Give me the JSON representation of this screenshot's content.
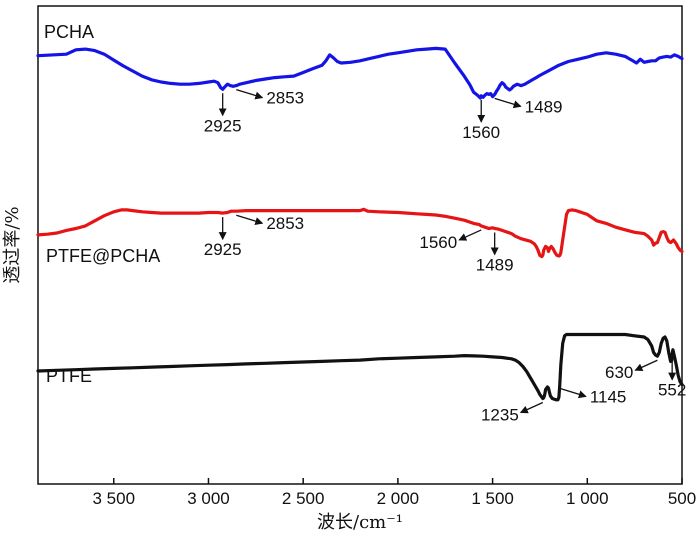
{
  "chart_data": {
    "type": "line",
    "title": "",
    "xlabel": "波长/cm⁻¹",
    "ylabel": "透过率/%",
    "xlim": [
      3900,
      500
    ],
    "x_reversed": true,
    "ylim": [
      0,
      100
    ],
    "x_ticks": [
      3500,
      3000,
      2500,
      2000,
      1500,
      1000,
      500
    ],
    "x_tick_labels": [
      "3 500",
      "3 000",
      "2 500",
      "2 000",
      "1 500",
      "1 000",
      "500"
    ],
    "y_ticks_shown": false,
    "grid": false,
    "legend": "none (series labelled inline)",
    "series": [
      {
        "name": "PCHA",
        "color": "#1414e6",
        "x": [
          3900,
          3750,
          3700,
          3650,
          3600,
          3550,
          3500,
          3450,
          3400,
          3350,
          3300,
          3250,
          3200,
          3150,
          3100,
          3050,
          3000,
          2970,
          2950,
          2935,
          2925,
          2915,
          2900,
          2885,
          2870,
          2853,
          2835,
          2800,
          2750,
          2700,
          2650,
          2600,
          2550,
          2500,
          2450,
          2400,
          2380,
          2360,
          2340,
          2320,
          2300,
          2250,
          2200,
          2150,
          2100,
          2050,
          2000,
          1950,
          1900,
          1850,
          1800,
          1750,
          1700,
          1650,
          1620,
          1600,
          1580,
          1565,
          1560,
          1550,
          1540,
          1530,
          1520,
          1510,
          1500,
          1489,
          1480,
          1470,
          1460,
          1450,
          1440,
          1430,
          1410,
          1400,
          1390,
          1370,
          1350,
          1330,
          1310,
          1290,
          1270,
          1250,
          1200,
          1150,
          1100,
          1050,
          1000,
          950,
          900,
          850,
          800,
          780,
          760,
          740,
          720,
          700,
          680,
          660,
          640,
          620,
          600,
          580,
          560,
          540,
          520,
          500
        ],
        "y": [
          92,
          93,
          96,
          96.5,
          95.5,
          93,
          89,
          85,
          81.5,
          78,
          75.5,
          74,
          73,
          72.5,
          72.5,
          73,
          74,
          74.5,
          73.5,
          70,
          69,
          70.5,
          72.5,
          71.5,
          71,
          71.5,
          72.5,
          73.5,
          75,
          76,
          77,
          77.5,
          78,
          80.5,
          83,
          85.5,
          88.5,
          92.5,
          90.5,
          88,
          87,
          87.5,
          88.5,
          90,
          91.5,
          93,
          94,
          95,
          96,
          96.5,
          97,
          96.5,
          87,
          78,
          72,
          67,
          65,
          63,
          64.5,
          63.5,
          65,
          66,
          65.5,
          66,
          64,
          65.5,
          67.5,
          69.5,
          72,
          73.5,
          72.5,
          70.5,
          68.5,
          69.5,
          71,
          72.5,
          71.5,
          72.5,
          74,
          75.5,
          77,
          78.5,
          82,
          85.5,
          88,
          89.5,
          91,
          93,
          94,
          93,
          91.5,
          90,
          88.5,
          87,
          89.5,
          87.5,
          88,
          88.5,
          88.5,
          90.5,
          91,
          91.5,
          91,
          92.5,
          91.5,
          90
        ]
      },
      {
        "name": "PTFE@PCHA",
        "color": "#e61414",
        "x": [
          3900,
          3850,
          3800,
          3750,
          3700,
          3650,
          3600,
          3550,
          3500,
          3460,
          3430,
          3400,
          3350,
          3300,
          3250,
          3200,
          3150,
          3100,
          3050,
          3000,
          2950,
          2925,
          2900,
          2880,
          2853,
          2800,
          2700,
          2600,
          2500,
          2400,
          2300,
          2200,
          2180,
          2160,
          2100,
          2000,
          1950,
          1900,
          1850,
          1800,
          1750,
          1700,
          1650,
          1600,
          1570,
          1560,
          1540,
          1520,
          1500,
          1489,
          1470,
          1450,
          1420,
          1400,
          1380,
          1350,
          1300,
          1280,
          1270,
          1260,
          1250,
          1240,
          1235,
          1230,
          1220,
          1210,
          1205,
          1200,
          1190,
          1180,
          1170,
          1160,
          1150,
          1145,
          1140,
          1130,
          1120,
          1110,
          1100,
          1080,
          1060,
          1040,
          1020,
          1000,
          980,
          950,
          900,
          850,
          800,
          750,
          700,
          680,
          660,
          650,
          640,
          630,
          620,
          610,
          600,
          590,
          580,
          570,
          560,
          552,
          545,
          530,
          520,
          510,
          500
        ],
        "y": [
          54,
          54.5,
          55.5,
          57.5,
          59,
          61,
          65,
          69,
          72,
          73.5,
          73.5,
          73,
          72,
          71.5,
          71,
          71,
          71,
          71,
          71,
          71.5,
          71.5,
          71,
          71.5,
          72.5,
          72.5,
          73,
          73,
          73,
          73,
          73,
          73,
          73,
          74,
          72.5,
          72,
          71.5,
          71,
          70.5,
          70,
          69.5,
          68.5,
          67,
          65.5,
          63,
          62,
          61,
          60,
          59,
          59.5,
          59,
          58.5,
          57.5,
          56,
          55,
          53,
          51,
          49,
          47,
          45,
          42,
          38,
          37,
          38,
          42,
          45,
          44,
          41,
          43,
          45,
          43,
          40,
          38,
          37.5,
          38,
          40,
          50,
          60,
          70,
          73,
          73.5,
          73,
          72,
          71,
          70,
          68,
          65,
          63,
          60,
          58,
          56,
          55,
          53,
          50,
          46,
          47.5,
          48,
          52,
          56,
          56.5,
          56,
          52,
          49,
          48,
          49,
          50,
          47,
          44,
          42,
          41
        ]
      },
      {
        "name": "PTFE",
        "color": "#111111",
        "x": [
          3900,
          3800,
          3700,
          3600,
          3500,
          3400,
          3300,
          3200,
          3100,
          3000,
          2900,
          2800,
          2700,
          2600,
          2500,
          2400,
          2300,
          2200,
          2100,
          2000,
          1900,
          1800,
          1700,
          1650,
          1600,
          1550,
          1500,
          1450,
          1400,
          1380,
          1360,
          1340,
          1320,
          1300,
          1280,
          1260,
          1250,
          1240,
          1235,
          1230,
          1225,
          1220,
          1210,
          1205,
          1200,
          1195,
          1185,
          1175,
          1165,
          1155,
          1150,
          1145,
          1140,
          1130,
          1120,
          1110,
          1100,
          1080,
          1060,
          1040,
          1020,
          1000,
          980,
          950,
          900,
          850,
          800,
          750,
          700,
          680,
          660,
          650,
          640,
          630,
          620,
          610,
          600,
          590,
          580,
          570,
          560,
          555,
          552,
          548,
          540,
          530,
          520,
          510,
          500
        ],
        "y": [
          30.5,
          31,
          31.5,
          32,
          32.5,
          33,
          33.5,
          34,
          34.5,
          35,
          35.5,
          36,
          36.5,
          37,
          37.5,
          38,
          38.5,
          39,
          40,
          40.5,
          41,
          41.5,
          42,
          42.5,
          42.3,
          42,
          41.5,
          41,
          40,
          39,
          37,
          34,
          30,
          25,
          20,
          15,
          12,
          10,
          9,
          9.5,
          12,
          16,
          18,
          17,
          14,
          11,
          9,
          8.5,
          8,
          8,
          10,
          20,
          35,
          52,
          58,
          59,
          59,
          59,
          59,
          59,
          59,
          59,
          59,
          59,
          59,
          59,
          59,
          58,
          57,
          55,
          50,
          45,
          43,
          42,
          45,
          52,
          56,
          57,
          54,
          45,
          38,
          38.5,
          44,
          47,
          42,
          35,
          27,
          22,
          20
        ]
      }
    ],
    "series_labels": [
      {
        "series": "PCHA",
        "text": "PCHA"
      },
      {
        "series": "PTFE@PCHA",
        "text": "PTFE@PCHA"
      },
      {
        "series": "PTFE",
        "text": "PTFE"
      }
    ],
    "annotations": [
      {
        "series": "PCHA",
        "x": 2925,
        "text": "2925",
        "direction": "down"
      },
      {
        "series": "PCHA",
        "x": 2853,
        "text": "2853",
        "direction": "right"
      },
      {
        "series": "PCHA",
        "x": 1560,
        "text": "1560",
        "direction": "down"
      },
      {
        "series": "PCHA",
        "x": 1489,
        "text": "1489",
        "direction": "right"
      },
      {
        "series": "PTFE@PCHA",
        "x": 2925,
        "text": "2925",
        "direction": "down"
      },
      {
        "series": "PTFE@PCHA",
        "x": 2853,
        "text": "2853",
        "direction": "right"
      },
      {
        "series": "PTFE@PCHA",
        "x": 1560,
        "text": "1560",
        "direction": "left"
      },
      {
        "series": "PTFE@PCHA",
        "x": 1489,
        "text": "1489",
        "direction": "down"
      },
      {
        "series": "PTFE",
        "x": 1235,
        "text": "1235",
        "direction": "left"
      },
      {
        "series": "PTFE",
        "x": 1145,
        "text": "1145",
        "direction": "right"
      },
      {
        "series": "PTFE",
        "x": 630,
        "text": "630",
        "direction": "left"
      },
      {
        "series": "PTFE",
        "x": 552,
        "text": "552",
        "direction": "down"
      }
    ]
  }
}
